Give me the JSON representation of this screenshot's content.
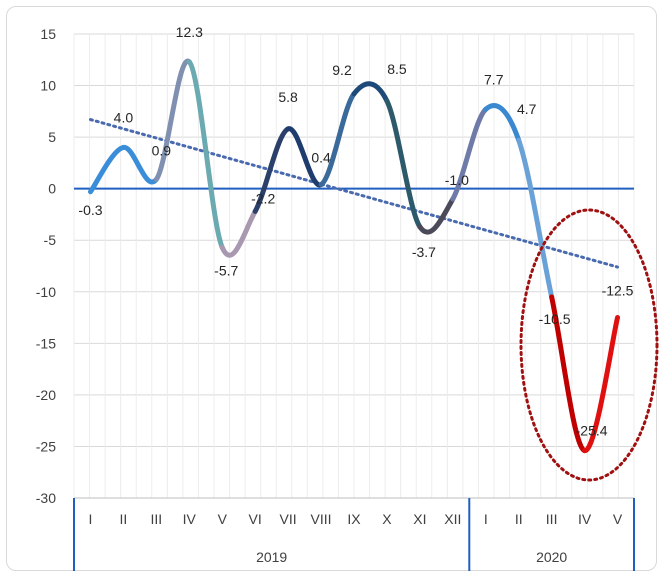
{
  "chart_data": {
    "type": "line",
    "title": "",
    "xlabel": "",
    "ylabel": "",
    "ylim": [
      -30,
      15
    ],
    "yticks": [
      15,
      10,
      5,
      0,
      -5,
      -10,
      -15,
      -20,
      -25,
      -30
    ],
    "grid": true,
    "legend": "none",
    "groups": [
      {
        "label": "2019",
        "categories": [
          "I",
          "II",
          "III",
          "IV",
          "V",
          "VI",
          "VII",
          "VIII",
          "IX",
          "X",
          "XI",
          "XII"
        ]
      },
      {
        "label": "2020",
        "categories": [
          "I",
          "II",
          "III",
          "IV",
          "V"
        ]
      }
    ],
    "values": [
      -0.3,
      4.0,
      0.9,
      12.3,
      -5.7,
      -2.2,
      5.8,
      0.4,
      9.2,
      8.5,
      -3.7,
      -1.0,
      7.7,
      4.7,
      -10.5,
      -25.4,
      -12.5
    ],
    "data_labels": [
      "-0.3",
      "4.0",
      "0.9",
      "12.3",
      "-5.7",
      "-2.2",
      "5.8",
      "0.4",
      "9.2",
      "8.5",
      "-3.7",
      "-1.0",
      "7.7",
      "4.7",
      "-10.5",
      "-25.4",
      "-12.5"
    ],
    "segment_colors": [
      "#3a8dd8",
      "#3a8dd8",
      "#8090b0",
      "#6aaab0",
      "#a898b0",
      "#2a3f6a",
      "#1e3c6e",
      "#3a6a9a",
      "#1e4a7a",
      "#2d5a6a",
      "#4a4a58",
      "#6e7aa8",
      "#3a88d0",
      "#6aa2d8",
      "#c00000",
      "#e01010"
    ],
    "trendline": {
      "start": 6.7,
      "end": -7.6,
      "color": "#4a6ab0"
    },
    "zero_line_color": "#1f5fbf",
    "highlight_ellipse_color": "#a01010"
  }
}
